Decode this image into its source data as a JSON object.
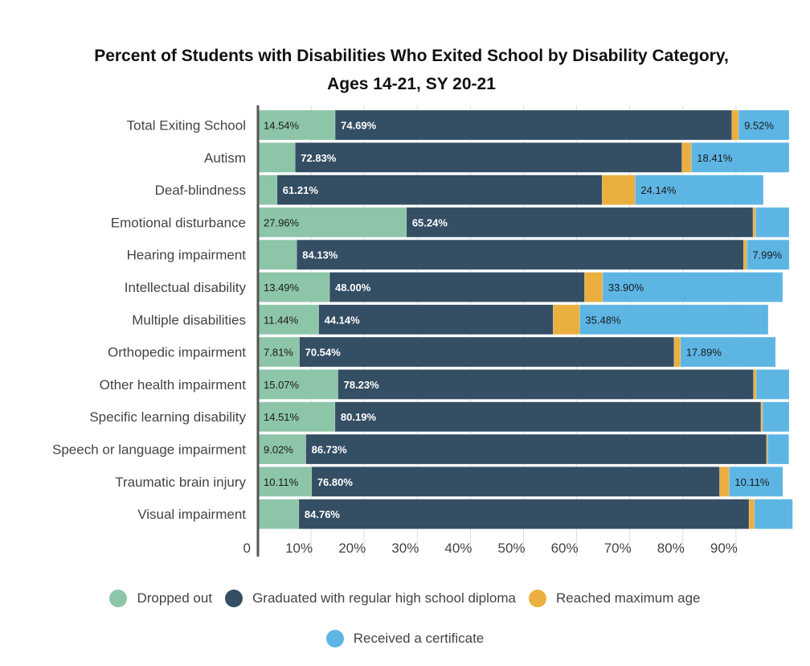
{
  "chart_data": {
    "type": "bar",
    "orientation": "horizontal",
    "stacked": true,
    "title": "Percent of Students with Disabilities Who Exited School by Disability Category, Ages 14-21, SY 20-21",
    "title_lines": [
      "Percent of Students with Disabilities Who Exited School by Disability Category,",
      "Ages 14-21, SY 20-21"
    ],
    "xlabel": "",
    "ylabel": "",
    "xlim": [
      0,
      100
    ],
    "x_ticks": [
      {
        "value": 0,
        "label": "0"
      },
      {
        "value": 10,
        "label": "10%"
      },
      {
        "value": 20,
        "label": "20%"
      },
      {
        "value": 30,
        "label": "30%"
      },
      {
        "value": 40,
        "label": "40%"
      },
      {
        "value": 50,
        "label": "50%"
      },
      {
        "value": 60,
        "label": "60%"
      },
      {
        "value": 70,
        "label": "70%"
      },
      {
        "value": 80,
        "label": "80%"
      },
      {
        "value": 90,
        "label": "90%"
      }
    ],
    "grid": true,
    "legend_position": "bottom",
    "categories": [
      "Total Exiting School",
      "Autism",
      "Deaf-blindness",
      "Emotional disturbance",
      "Hearing impairment",
      "Intellectual disability",
      "Multiple disabilities",
      "Orthopedic impairment",
      "Other health impairment",
      "Specific learning disability",
      "Speech or language impairment",
      "Traumatic brain injury",
      "Visual impairment"
    ],
    "series": [
      {
        "name": "Dropped out",
        "color": "#8dc5a8",
        "label_style": "dark",
        "values": [
          14.54,
          7.0,
          3.6,
          27.96,
          7.3,
          13.49,
          11.44,
          7.81,
          15.07,
          14.51,
          9.02,
          10.11,
          7.7
        ],
        "labels": [
          "14.54%",
          "",
          "",
          "27.96%",
          "",
          "13.49%",
          "11.44%",
          "7.81%",
          "15.07%",
          "14.51%",
          "9.02%",
          "10.11%",
          ""
        ]
      },
      {
        "name": "Graduated with regular high school diploma",
        "color": "#344e64",
        "label_style": "light",
        "values": [
          74.69,
          72.83,
          61.21,
          65.24,
          84.13,
          48.0,
          44.14,
          70.54,
          78.23,
          80.19,
          86.73,
          76.8,
          84.76
        ],
        "labels": [
          "74.69%",
          "72.83%",
          "61.21%",
          "65.24%",
          "84.13%",
          "48.00%",
          "44.14%",
          "70.54%",
          "78.23%",
          "80.19%",
          "86.73%",
          "76.80%",
          "84.76%"
        ]
      },
      {
        "name": "Reached maximum age",
        "color": "#ebaf3f",
        "label_style": "dark",
        "values": [
          1.25,
          1.76,
          6.2,
          0.5,
          0.6,
          3.4,
          5.0,
          1.2,
          0.5,
          0.3,
          0.2,
          1.8,
          1.0
        ],
        "labels": [
          "",
          "",
          "",
          "",
          "",
          "",
          "",
          "",
          "",
          "",
          "",
          "",
          ""
        ]
      },
      {
        "name": "Received a certificate",
        "color": "#5db5e4",
        "label_style": "dark",
        "values": [
          9.52,
          18.41,
          24.14,
          6.3,
          7.99,
          33.9,
          35.48,
          17.89,
          6.2,
          5.0,
          4.0,
          10.11,
          7.2
        ],
        "labels": [
          "9.52%",
          "18.41%",
          "24.14%",
          "",
          "7.99%",
          "33.90%",
          "35.48%",
          "17.89%",
          "",
          "",
          "",
          "10.11%",
          ""
        ]
      }
    ]
  },
  "legend": {
    "rows": [
      [
        {
          "label": "Dropped out",
          "color": "#8dc5a8"
        },
        {
          "label": "Graduated with regular high school diploma",
          "color": "#344e64"
        },
        {
          "label": "Reached maximum age",
          "color": "#ebaf3f"
        }
      ],
      [
        {
          "label": "Received a certificate",
          "color": "#5db5e4"
        }
      ]
    ]
  },
  "colors": {
    "axis": "#555555",
    "grid": "#dddddd",
    "text": "#444444",
    "title": "#111111"
  }
}
